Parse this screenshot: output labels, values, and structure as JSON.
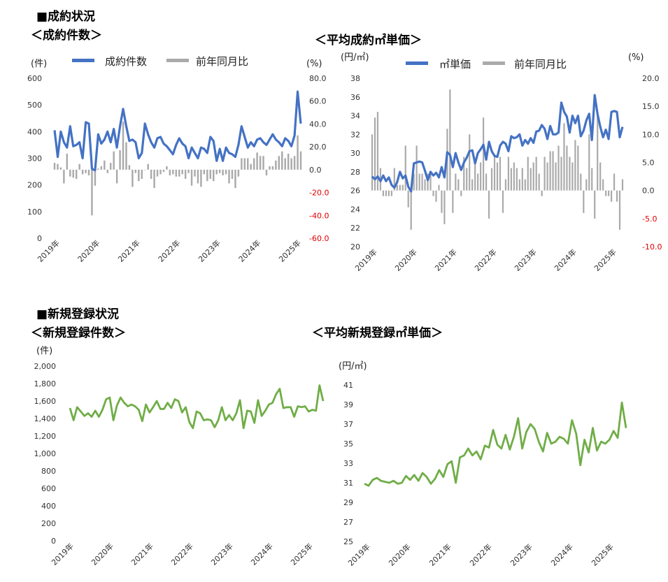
{
  "sections": {
    "contract_status": "■成約状況",
    "registration_status": "■新規登録状況"
  },
  "chart_data": [
    {
      "id": "contracts",
      "type": "bar+line",
      "title": "＜成約件数＞",
      "y_unit_left": "(件)",
      "y_unit_right": "(%)",
      "ylim_left": [
        0,
        600
      ],
      "left_ticks": [
        "0",
        "100",
        "200",
        "300",
        "400",
        "500",
        "600"
      ],
      "ylim_right": [
        -60,
        80
      ],
      "right_ticks": [
        "-60.0",
        "-40.0",
        "-20.0",
        "0.0",
        "20.0",
        "40.0",
        "60.0",
        "80.0"
      ],
      "x_labels": [
        "2019年",
        "2020年",
        "2021年",
        "2022年",
        "2023年",
        "2024年",
        "2025年"
      ],
      "start": "2019-01",
      "series": [
        {
          "name": "成約件数",
          "axis": "left",
          "kind": "line",
          "color": "#4472c4",
          "values": [
            405,
            305,
            400,
            360,
            340,
            420,
            345,
            350,
            360,
            300,
            435,
            430,
            260,
            255,
            390,
            355,
            370,
            400,
            360,
            410,
            340,
            420,
            485,
            420,
            365,
            370,
            360,
            300,
            320,
            430,
            390,
            360,
            340,
            375,
            380,
            355,
            345,
            330,
            315,
            350,
            375,
            355,
            345,
            300,
            340,
            320,
            300,
            340,
            335,
            320,
            380,
            365,
            290,
            335,
            290,
            340,
            320,
            315,
            305,
            350,
            420,
            380,
            340,
            360,
            345,
            370,
            375,
            360,
            350,
            370,
            390,
            370,
            360,
            345,
            375,
            365,
            345,
            385,
            550,
            430
          ]
        },
        {
          "name": "前年同月比",
          "axis": "right",
          "kind": "bar",
          "color": "#aaaaaa",
          "values": [
            6,
            5,
            2,
            -12,
            14,
            -6,
            -7,
            -8,
            5,
            -4,
            -3,
            -5,
            -40,
            -14,
            1,
            3,
            8,
            -3,
            6,
            16,
            -12,
            17,
            42,
            24,
            4,
            -15,
            -3,
            -10,
            -8,
            0,
            5,
            -8,
            -16,
            -6,
            -4,
            -2,
            3,
            -5,
            -4,
            -6,
            -6,
            -4,
            -8,
            -3,
            -14,
            -6,
            -12,
            -15,
            -4,
            -10,
            -8,
            -10,
            -4,
            -3,
            -5,
            -4,
            -12,
            -8,
            -16,
            -6,
            10,
            10,
            10,
            5,
            10,
            15,
            12,
            12,
            -5,
            3,
            3,
            8,
            12,
            16,
            10,
            14,
            10,
            12,
            30,
            16
          ]
        }
      ]
    },
    {
      "id": "contract_unit_price",
      "type": "bar+line",
      "title": "＜平均成約㎡単価＞",
      "y_unit_left": "(円/㎡)",
      "y_unit_right": "(%)",
      "ylim_left": [
        20,
        38
      ],
      "left_ticks": [
        "20",
        "22",
        "24",
        "26",
        "28",
        "30",
        "32",
        "34",
        "36",
        "38"
      ],
      "ylim_right": [
        -10,
        20
      ],
      "right_ticks": [
        "-10.0",
        "-5.0",
        "0.0",
        "5.0",
        "10.0",
        "15.0",
        "20.0"
      ],
      "x_labels": [
        "2019年",
        "2020年",
        "2021年",
        "2022年",
        "2023年",
        "2024年",
        "2025年"
      ],
      "start": "2019-01",
      "series": [
        {
          "name": "㎡単価",
          "axis": "left",
          "kind": "line",
          "color": "#4472c4",
          "values": [
            27.5,
            27.2,
            27.5,
            27.0,
            27.6,
            27.0,
            27.4,
            26.6,
            26.3,
            26.9,
            28.0,
            27.3,
            27.6,
            26.4,
            25.9,
            28.9,
            29.0,
            29.1,
            29.0,
            28.1,
            27.1,
            28.0,
            27.6,
            27.9,
            27.4,
            28.5,
            27.4,
            30.1,
            29.8,
            28.5,
            30.0,
            29.0,
            28.2,
            29.0,
            29.5,
            30.2,
            30.3,
            28.9,
            30.0,
            30.4,
            30.9,
            29.3,
            31.2,
            30.2,
            29.7,
            29.6,
            30.8,
            31.2,
            31.0,
            30.2,
            31.8,
            31.6,
            31.7,
            32.0,
            30.8,
            31.4,
            31.0,
            31.6,
            31.1,
            32.3,
            32.4,
            33.0,
            32.6,
            31.5,
            32.9,
            32.0,
            32.0,
            32.2,
            35.4,
            34.4,
            33.9,
            32.2,
            34.0,
            33.2,
            34.0,
            31.8,
            32.4,
            33.5,
            34.2,
            31.4,
            36.2,
            34.2,
            32.8,
            31.7,
            32.5,
            31.5,
            34.4,
            34.5,
            34.4,
            31.7,
            32.8
          ]
        },
        {
          "name": "前年同月比",
          "axis": "right",
          "kind": "bar",
          "color": "#aaaaaa",
          "values": [
            10,
            13,
            14,
            4,
            -1,
            -1,
            -1,
            -1,
            4,
            1,
            1,
            1,
            8,
            -3,
            -7,
            3,
            8,
            3,
            3,
            2,
            3,
            3,
            -1,
            -2,
            1,
            -4,
            -6,
            11,
            18,
            -4,
            3,
            2,
            -1,
            6,
            4,
            10,
            2,
            5,
            3,
            5,
            13,
            3,
            -5,
            4,
            6,
            5,
            6,
            -4,
            2,
            6,
            4,
            5,
            4,
            2,
            4,
            2,
            6,
            4,
            5,
            6,
            3,
            -1,
            6,
            5,
            7,
            7,
            5,
            8,
            6,
            12,
            8,
            6,
            5,
            9,
            8,
            3,
            -4,
            2,
            10,
            4,
            -5,
            14,
            5,
            2,
            -1,
            -1,
            -2,
            3,
            -2,
            -7,
            2
          ]
        }
      ]
    },
    {
      "id": "new_registrations",
      "type": "line",
      "title": "＜新規登録件数＞",
      "y_unit_left": "(件)",
      "ylim_left": [
        0,
        2000
      ],
      "left_ticks": [
        "0",
        "200",
        "400",
        "600",
        "800",
        "1,000",
        "1,200",
        "1,400",
        "1,600",
        "1,800",
        "2,000"
      ],
      "x_labels": [
        "2019年",
        "2020年",
        "2021年",
        "2022年",
        "2023年",
        "2024年",
        "2025年"
      ],
      "start": "2019-01",
      "series": [
        {
          "name": "新規登録件数",
          "axis": "left",
          "kind": "line",
          "color": "#70ad47",
          "values": [
            1520,
            1380,
            1530,
            1480,
            1430,
            1460,
            1420,
            1490,
            1420,
            1500,
            1620,
            1640,
            1380,
            1550,
            1640,
            1580,
            1540,
            1560,
            1540,
            1500,
            1370,
            1560,
            1470,
            1530,
            1600,
            1510,
            1510,
            1580,
            1520,
            1620,
            1600,
            1470,
            1530,
            1360,
            1290,
            1480,
            1460,
            1380,
            1390,
            1380,
            1300,
            1380,
            1530,
            1380,
            1440,
            1380,
            1460,
            1610,
            1290,
            1490,
            1480,
            1350,
            1610,
            1430,
            1490,
            1560,
            1580,
            1680,
            1740,
            1520,
            1530,
            1530,
            1420,
            1540,
            1530,
            1540,
            1480,
            1500,
            1490,
            1780,
            1600
          ]
        }
      ]
    },
    {
      "id": "new_registration_unit_price",
      "type": "line",
      "title": "＜平均新規登録㎡単価＞",
      "y_unit_left": "(円/㎡)",
      "ylim_left": [
        25,
        41
      ],
      "left_ticks": [
        "25",
        "27",
        "29",
        "31",
        "33",
        "35",
        "37",
        "39",
        "41"
      ],
      "x_labels": [
        "2019年",
        "2020年",
        "2021年",
        "2022年",
        "2023年",
        "2024年",
        "2025年"
      ],
      "start": "2019-01",
      "series": [
        {
          "name": "新規登録㎡単価",
          "axis": "left",
          "kind": "line",
          "color": "#70ad47",
          "values": [
            30.9,
            30.7,
            31.3,
            31.5,
            31.2,
            31.1,
            31.0,
            31.2,
            30.9,
            31.0,
            31.7,
            31.3,
            31.8,
            31.2,
            32.0,
            31.6,
            30.9,
            31.4,
            32.3,
            31.6,
            32.9,
            33.2,
            31.0,
            33.6,
            33.8,
            34.5,
            33.8,
            34.2,
            33.4,
            34.8,
            34.6,
            36.4,
            34.9,
            34.5,
            35.9,
            34.4,
            35.7,
            37.6,
            34.5,
            36.2,
            37.0,
            36.5,
            35.2,
            34.2,
            36.1,
            35.0,
            35.2,
            35.7,
            35.5,
            35.0,
            37.4,
            36.0,
            32.8,
            35.4,
            34.1,
            36.6,
            34.3,
            35.2,
            35.0,
            35.4,
            36.3,
            35.6,
            39.2,
            36.6
          ]
        }
      ]
    }
  ]
}
